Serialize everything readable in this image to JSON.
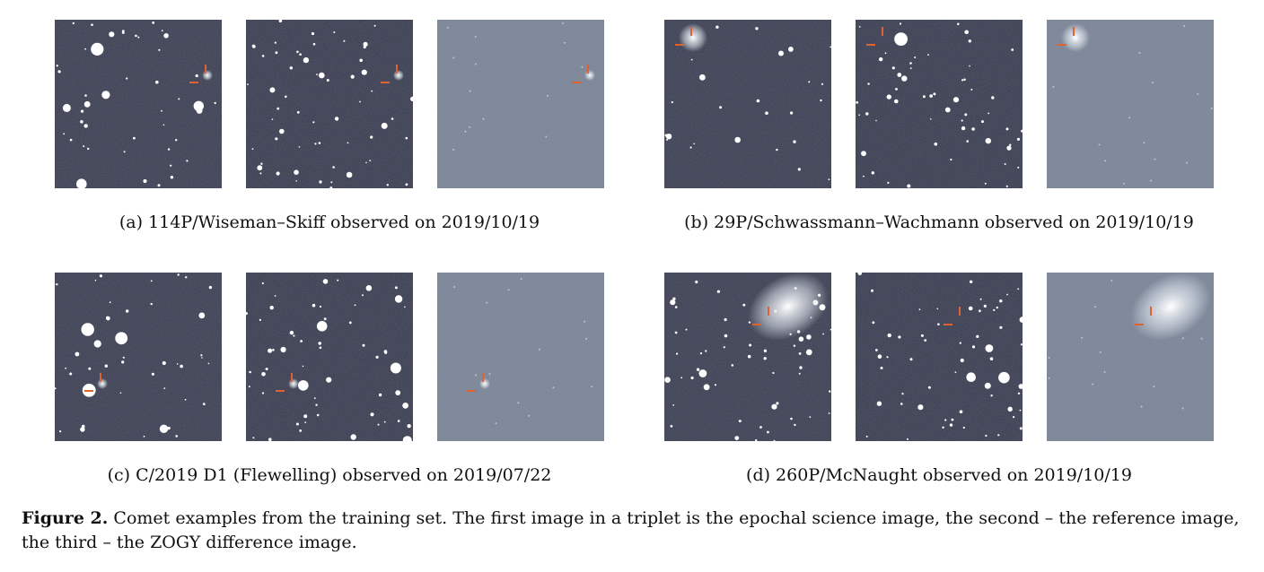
{
  "panels": [
    {
      "subcaption": "(a) 114P/Wiseman–Skiff observed on 2019/10/19",
      "images": [
        {
          "role": "science",
          "icon": "starfield-image",
          "marker": true
        },
        {
          "role": "reference",
          "icon": "starfield-image",
          "marker": true
        },
        {
          "role": "difference",
          "icon": "difference-image",
          "marker": true
        }
      ]
    },
    {
      "subcaption": "(b) 29P/Schwassmann–Wachmann observed on 2019/10/19",
      "images": [
        {
          "role": "science",
          "icon": "starfield-image",
          "marker": true
        },
        {
          "role": "reference",
          "icon": "starfield-image",
          "marker": true
        },
        {
          "role": "difference",
          "icon": "difference-image",
          "marker": true
        }
      ]
    },
    {
      "subcaption": "(c) C/2019 D1 (Flewelling) observed on 2019/07/22",
      "images": [
        {
          "role": "science",
          "icon": "starfield-image",
          "marker": true
        },
        {
          "role": "reference",
          "icon": "starfield-image",
          "marker": true
        },
        {
          "role": "difference",
          "icon": "difference-image",
          "marker": true
        }
      ]
    },
    {
      "subcaption": "(d) 260P/McNaught observed on 2019/10/19",
      "images": [
        {
          "role": "science",
          "icon": "starfield-image",
          "marker": true
        },
        {
          "role": "reference",
          "icon": "starfield-image",
          "marker": true
        },
        {
          "role": "difference",
          "icon": "difference-image",
          "marker": true
        }
      ]
    }
  ],
  "caption": {
    "label": "Figure 2.",
    "text": "Comet examples from the training set. The first image in a triplet is the epochal science image, the second – the reference image, the third – the ZOGY difference image."
  },
  "colors": {
    "science_bg": "#3a3e52",
    "reference_bg": "#383c50",
    "difference_bg": "#7a8598",
    "marker": "#e0622e",
    "star": "#ffffff"
  }
}
